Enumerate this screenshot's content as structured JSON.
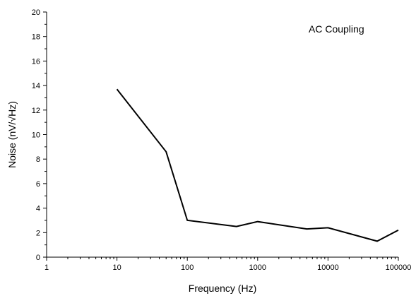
{
  "chart_data": {
    "type": "line",
    "title": "",
    "annotation": "AC Coupling",
    "xlabel": "Frequency (Hz)",
    "ylabel": "Noise (nV/√Hz)",
    "xscale": "log",
    "xlim": [
      1,
      100000
    ],
    "ylim": [
      0,
      20
    ],
    "x_ticks": [
      1,
      10,
      100,
      1000,
      10000,
      100000
    ],
    "x_tick_labels": [
      "1",
      "10",
      "100",
      "1000",
      "10000",
      "100000"
    ],
    "y_ticks": [
      0,
      2,
      4,
      6,
      8,
      10,
      12,
      14,
      16,
      18,
      20
    ],
    "y_tick_labels": [
      "0",
      "2",
      "4",
      "6",
      "8",
      "10",
      "12",
      "14",
      "16",
      "18",
      "20"
    ],
    "grid": false,
    "series": [
      {
        "x": [
          10,
          50,
          100,
          500,
          1000,
          5000,
          10000,
          50000,
          100000
        ],
        "y": [
          13.7,
          8.6,
          3.0,
          2.5,
          2.9,
          2.3,
          2.4,
          1.3,
          2.2
        ],
        "color": "#000000"
      }
    ]
  }
}
